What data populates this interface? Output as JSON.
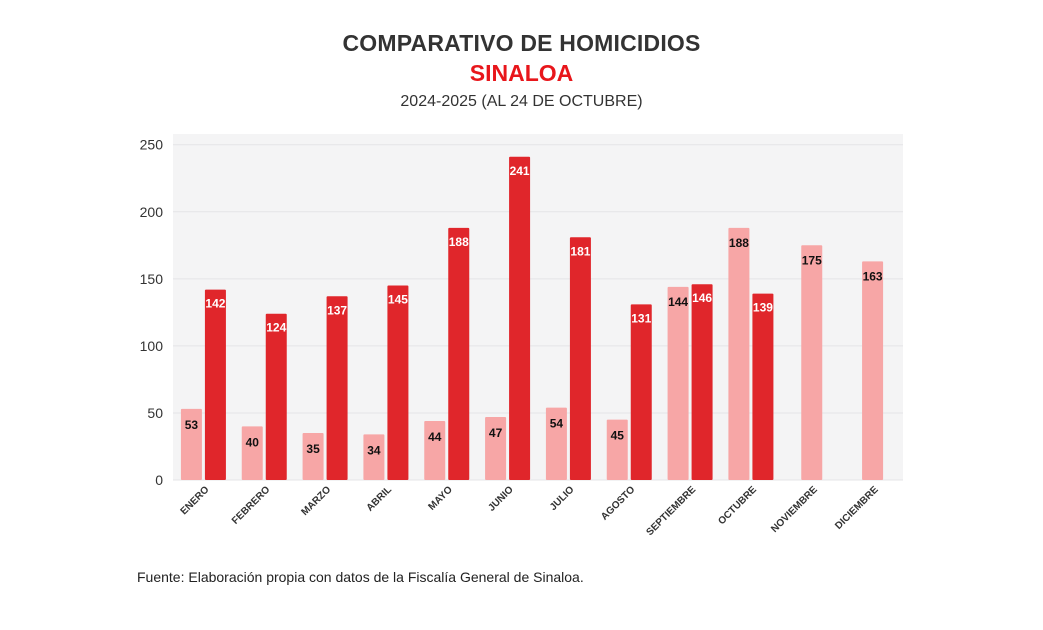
{
  "header": {
    "title": "COMPARATIVO DE HOMICIDIOS",
    "subtitle": "SINALOA",
    "period": "2024-2025 (AL 24 DE OCTUBRE)"
  },
  "footer": {
    "source": "Fuente: Elaboración propia con datos de la Fiscalía General de Sinaloa."
  },
  "colors": {
    "series_2024": "#f7a6a6",
    "series_2025": "#e0262b",
    "plot_bg": "#f4f4f5",
    "grid": "#e4e4e7"
  },
  "chart_data": {
    "type": "bar",
    "title": "COMPARATIVO DE HOMICIDIOS",
    "subtitle": "SINALOA",
    "xlabel": "",
    "ylabel": "",
    "ylim": [
      0,
      258
    ],
    "yticks": [
      0,
      50,
      100,
      150,
      200,
      250
    ],
    "grid": true,
    "categories": [
      "ENERO",
      "FEBRERO",
      "MARZO",
      "ABRIL",
      "MAYO",
      "JUNIO",
      "JULIO",
      "AGOSTO",
      "SEPTIEMBRE",
      "OCTUBRE",
      "NOVIEMBRE",
      "DICIEMBRE"
    ],
    "series": [
      {
        "name": "2024",
        "values": [
          53,
          40,
          35,
          34,
          44,
          47,
          54,
          45,
          144,
          188,
          175,
          163
        ]
      },
      {
        "name": "2025",
        "values": [
          142,
          124,
          137,
          145,
          188,
          241,
          181,
          131,
          146,
          139,
          null,
          null
        ]
      }
    ]
  }
}
